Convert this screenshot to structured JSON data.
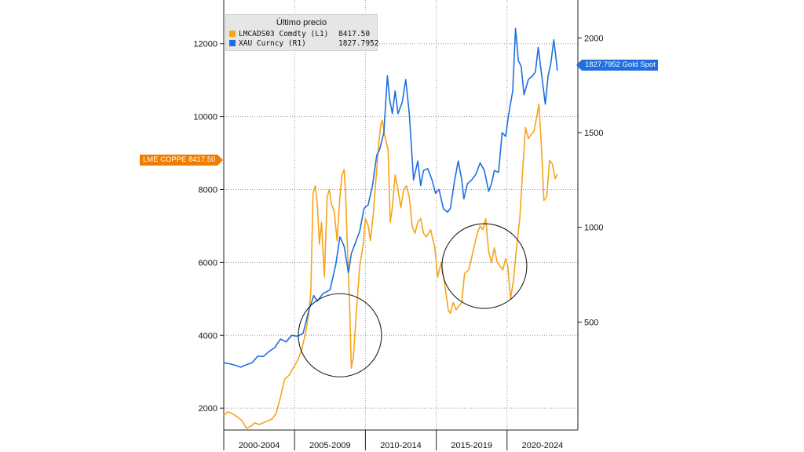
{
  "chart_data": {
    "type": "line",
    "legend": {
      "title": "Último precio",
      "entries": [
        {
          "name": "LMCADS03 Comdty  (L1)",
          "value": "8417.50",
          "color": "#f7a418"
        },
        {
          "name": "XAU Curncy  (R1)",
          "value": "1827.7952",
          "color": "#1f6fe0"
        }
      ]
    },
    "last_value_tags": {
      "left": "LME COPPE 8417.50",
      "right": "1827.7952 Gold Spot"
    },
    "x_axis": {
      "range": [
        2000.0,
        2025.0
      ],
      "groups": [
        {
          "label": "2000-2004",
          "start": 2000,
          "end": 2005
        },
        {
          "label": "2005-2009",
          "start": 2005,
          "end": 2010
        },
        {
          "label": "2010-2014",
          "start": 2010,
          "end": 2015
        },
        {
          "label": "2015-2019",
          "start": 2015,
          "end": 2020
        },
        {
          "label": "2020-2024",
          "start": 2020,
          "end": 2025
        }
      ]
    },
    "y_left": {
      "ticks": [
        2000,
        4000,
        6000,
        8000,
        10000,
        12000
      ],
      "ylim": [
        1400,
        13200
      ]
    },
    "y_right": {
      "ticks": [
        500,
        1000,
        1500,
        2000
      ],
      "ylim": [
        -70,
        2200
      ]
    },
    "series": [
      {
        "name": "LMCADS03 Comdty  (L1)",
        "axis": "left",
        "color": "#f7a418",
        "points": [
          [
            2000.0,
            1800
          ],
          [
            2000.3,
            1900
          ],
          [
            2000.6,
            1850
          ],
          [
            2001.0,
            1750
          ],
          [
            2001.3,
            1650
          ],
          [
            2001.6,
            1450
          ],
          [
            2001.9,
            1500
          ],
          [
            2002.2,
            1600
          ],
          [
            2002.5,
            1550
          ],
          [
            2002.8,
            1600
          ],
          [
            2003.1,
            1650
          ],
          [
            2003.4,
            1700
          ],
          [
            2003.7,
            1850
          ],
          [
            2004.0,
            2300
          ],
          [
            2004.3,
            2800
          ],
          [
            2004.6,
            2900
          ],
          [
            2004.9,
            3100
          ],
          [
            2005.2,
            3300
          ],
          [
            2005.5,
            3600
          ],
          [
            2005.8,
            4100
          ],
          [
            2006.0,
            4600
          ],
          [
            2006.15,
            5200
          ],
          [
            2006.3,
            7900
          ],
          [
            2006.45,
            8100
          ],
          [
            2006.6,
            7600
          ],
          [
            2006.75,
            6500
          ],
          [
            2006.9,
            7100
          ],
          [
            2007.1,
            5600
          ],
          [
            2007.3,
            7800
          ],
          [
            2007.45,
            8000
          ],
          [
            2007.6,
            7600
          ],
          [
            2007.8,
            7400
          ],
          [
            2008.0,
            6600
          ],
          [
            2008.2,
            7800
          ],
          [
            2008.35,
            8400
          ],
          [
            2008.5,
            8550
          ],
          [
            2008.6,
            7900
          ],
          [
            2008.75,
            6200
          ],
          [
            2008.9,
            4600
          ],
          [
            2009.0,
            3100
          ],
          [
            2009.15,
            3400
          ],
          [
            2009.35,
            4600
          ],
          [
            2009.6,
            5900
          ],
          [
            2009.85,
            6500
          ],
          [
            2010.0,
            7200
          ],
          [
            2010.2,
            7000
          ],
          [
            2010.35,
            6600
          ],
          [
            2010.55,
            7300
          ],
          [
            2010.75,
            8300
          ],
          [
            2010.95,
            9300
          ],
          [
            2011.1,
            9800
          ],
          [
            2011.2,
            9900
          ],
          [
            2011.4,
            9400
          ],
          [
            2011.6,
            9100
          ],
          [
            2011.75,
            7100
          ],
          [
            2011.9,
            7500
          ],
          [
            2012.1,
            8400
          ],
          [
            2012.3,
            8000
          ],
          [
            2012.5,
            7500
          ],
          [
            2012.7,
            8000
          ],
          [
            2012.9,
            8100
          ],
          [
            2013.1,
            7800
          ],
          [
            2013.3,
            7000
          ],
          [
            2013.5,
            6800
          ],
          [
            2013.7,
            7100
          ],
          [
            2013.9,
            7200
          ],
          [
            2014.1,
            6800
          ],
          [
            2014.3,
            6700
          ],
          [
            2014.6,
            6900
          ],
          [
            2014.9,
            6400
          ],
          [
            2015.1,
            5600
          ],
          [
            2015.35,
            6000
          ],
          [
            2015.6,
            5400
          ],
          [
            2015.85,
            4700
          ],
          [
            2016.0,
            4600
          ],
          [
            2016.2,
            4900
          ],
          [
            2016.4,
            4700
          ],
          [
            2016.6,
            4800
          ],
          [
            2016.8,
            4900
          ],
          [
            2017.0,
            5700
          ],
          [
            2017.3,
            5800
          ],
          [
            2017.6,
            6300
          ],
          [
            2017.9,
            6800
          ],
          [
            2018.1,
            7000
          ],
          [
            2018.3,
            6900
          ],
          [
            2018.5,
            7200
          ],
          [
            2018.7,
            6300
          ],
          [
            2018.9,
            6000
          ],
          [
            2019.1,
            6400
          ],
          [
            2019.3,
            6000
          ],
          [
            2019.5,
            5900
          ],
          [
            2019.7,
            5800
          ],
          [
            2019.9,
            6100
          ],
          [
            2020.05,
            5900
          ],
          [
            2020.25,
            5000
          ],
          [
            2020.45,
            5500
          ],
          [
            2020.7,
            6500
          ],
          [
            2020.9,
            7200
          ],
          [
            2021.1,
            8500
          ],
          [
            2021.3,
            9700
          ],
          [
            2021.5,
            9400
          ],
          [
            2021.7,
            9500
          ],
          [
            2021.9,
            9600
          ],
          [
            2022.1,
            10000
          ],
          [
            2022.25,
            10350
          ],
          [
            2022.45,
            9000
          ],
          [
            2022.6,
            7700
          ],
          [
            2022.8,
            7800
          ],
          [
            2023.0,
            8800
          ],
          [
            2023.2,
            8700
          ],
          [
            2023.4,
            8300
          ],
          [
            2023.55,
            8417.5
          ]
        ]
      },
      {
        "name": "XAU Curncy  (R1)",
        "axis": "right",
        "color": "#1f6fe0",
        "points": [
          [
            2000.0,
            285
          ],
          [
            2000.4,
            280
          ],
          [
            2000.8,
            272
          ],
          [
            2001.2,
            262
          ],
          [
            2001.6,
            275
          ],
          [
            2002.0,
            285
          ],
          [
            2002.4,
            320
          ],
          [
            2002.8,
            318
          ],
          [
            2003.2,
            345
          ],
          [
            2003.6,
            365
          ],
          [
            2004.0,
            410
          ],
          [
            2004.4,
            395
          ],
          [
            2004.8,
            430
          ],
          [
            2005.2,
            425
          ],
          [
            2005.6,
            440
          ],
          [
            2006.0,
            560
          ],
          [
            2006.35,
            640
          ],
          [
            2006.6,
            610
          ],
          [
            2007.0,
            650
          ],
          [
            2007.5,
            670
          ],
          [
            2007.9,
            800
          ],
          [
            2008.2,
            950
          ],
          [
            2008.5,
            900
          ],
          [
            2008.8,
            760
          ],
          [
            2009.0,
            860
          ],
          [
            2009.3,
            920
          ],
          [
            2009.6,
            980
          ],
          [
            2009.9,
            1100
          ],
          [
            2010.2,
            1120
          ],
          [
            2010.5,
            1220
          ],
          [
            2010.8,
            1380
          ],
          [
            2011.0,
            1410
          ],
          [
            2011.3,
            1500
          ],
          [
            2011.55,
            1800
          ],
          [
            2011.7,
            1680
          ],
          [
            2011.9,
            1600
          ],
          [
            2012.1,
            1720
          ],
          [
            2012.3,
            1600
          ],
          [
            2012.6,
            1660
          ],
          [
            2012.85,
            1780
          ],
          [
            2013.1,
            1600
          ],
          [
            2013.4,
            1250
          ],
          [
            2013.7,
            1350
          ],
          [
            2013.9,
            1220
          ],
          [
            2014.1,
            1300
          ],
          [
            2014.4,
            1310
          ],
          [
            2014.7,
            1250
          ],
          [
            2014.95,
            1180
          ],
          [
            2015.2,
            1200
          ],
          [
            2015.5,
            1100
          ],
          [
            2015.8,
            1080
          ],
          [
            2016.0,
            1100
          ],
          [
            2016.3,
            1250
          ],
          [
            2016.55,
            1350
          ],
          [
            2016.8,
            1250
          ],
          [
            2016.95,
            1150
          ],
          [
            2017.2,
            1230
          ],
          [
            2017.5,
            1250
          ],
          [
            2017.8,
            1280
          ],
          [
            2018.1,
            1340
          ],
          [
            2018.4,
            1300
          ],
          [
            2018.7,
            1190
          ],
          [
            2018.9,
            1230
          ],
          [
            2019.1,
            1300
          ],
          [
            2019.4,
            1290
          ],
          [
            2019.65,
            1500
          ],
          [
            2019.9,
            1480
          ],
          [
            2020.1,
            1590
          ],
          [
            2020.4,
            1720
          ],
          [
            2020.6,
            2050
          ],
          [
            2020.8,
            1880
          ],
          [
            2021.0,
            1850
          ],
          [
            2021.2,
            1700
          ],
          [
            2021.5,
            1780
          ],
          [
            2021.8,
            1800
          ],
          [
            2022.0,
            1820
          ],
          [
            2022.2,
            1950
          ],
          [
            2022.45,
            1800
          ],
          [
            2022.7,
            1650
          ],
          [
            2022.9,
            1800
          ],
          [
            2023.1,
            1870
          ],
          [
            2023.3,
            1990
          ],
          [
            2023.45,
            1900
          ],
          [
            2023.55,
            1827.8
          ]
        ]
      }
    ]
  }
}
